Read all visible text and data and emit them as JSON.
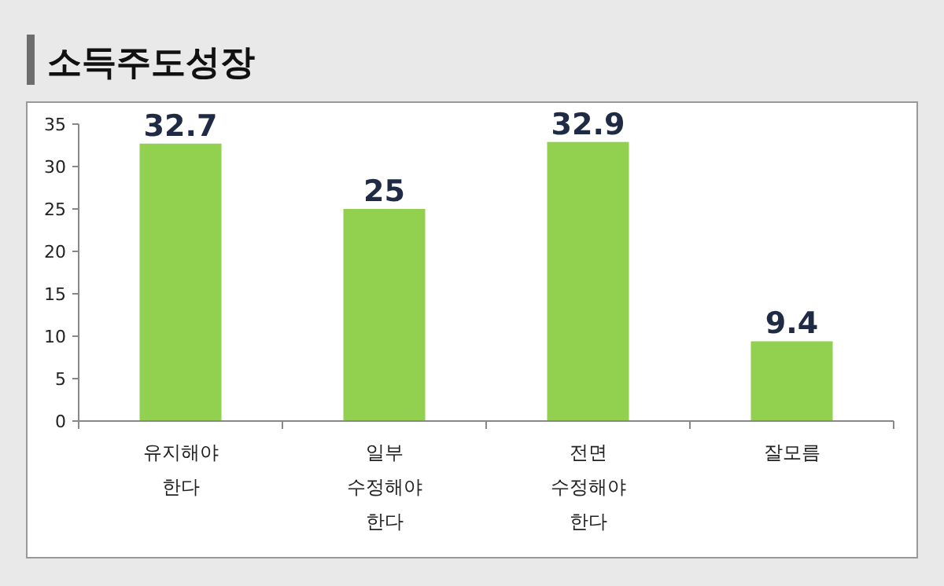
{
  "chart_data": {
    "type": "bar",
    "title": "소득주도성장",
    "categories": [
      "유지해야 한다",
      "일부 수정해야 한다",
      "전면 수정해야 한다",
      "잘모름"
    ],
    "values": [
      32.7,
      25,
      32.9,
      9.4
    ],
    "color": "#92d050",
    "ylim": [
      0,
      35
    ],
    "yticks": [
      0,
      5,
      10,
      15,
      20,
      25,
      30,
      35
    ],
    "grid": false,
    "data_labels": true
  }
}
